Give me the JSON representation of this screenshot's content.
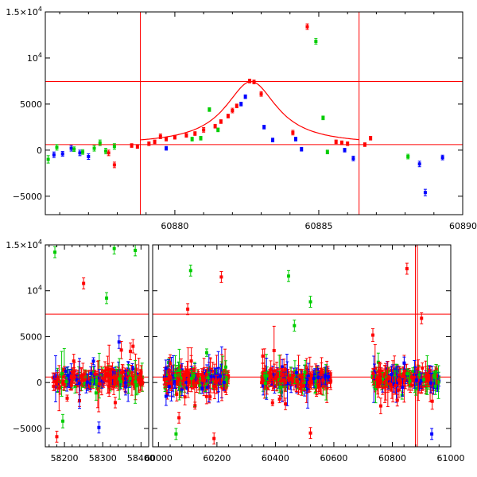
{
  "chart_data": [
    {
      "type": "scatter",
      "title": "",
      "xlabel": "",
      "ylabel": "",
      "xlim": [
        60875.5,
        60890
      ],
      "ylim": [
        -7000,
        15000
      ],
      "xticks": [
        60880,
        60885,
        60890
      ],
      "xtick_labels": [
        "60880",
        "60885",
        "60890"
      ],
      "yticks": [
        -5000,
        0,
        5000,
        10000,
        15000
      ],
      "ytick_labels": [
        {
          "base": "−5000",
          "exp": ""
        },
        {
          "base": "0",
          "exp": ""
        },
        {
          "base": "5000",
          "exp": ""
        },
        {
          "base": "10",
          "exp": "4"
        },
        {
          "base": "1.5×10",
          "exp": "4"
        }
      ],
      "reference_lines": {
        "horizontal": [
          7450,
          600
        ],
        "vertical": [
          60878.8,
          60886.4
        ]
      },
      "model_curve": {
        "color": "#ff0000",
        "peak_x": 60882.65,
        "peak_y": 7450,
        "baseline": 600,
        "width": 1.1,
        "x_range": [
          60878.8,
          60886.4
        ]
      },
      "series": [
        {
          "name": "blue",
          "color": "#0000ff",
          "points": [
            [
              60875.8,
              -500,
              300
            ],
            [
              60876.1,
              -400,
              250
            ],
            [
              60876.4,
              200,
              300
            ],
            [
              60876.7,
              -300,
              300
            ],
            [
              60877.0,
              -700,
              300
            ],
            [
              60879.7,
              200,
              200
            ],
            [
              60882.3,
              5000,
              200
            ],
            [
              60882.45,
              5800,
              200
            ],
            [
              60883.1,
              2500,
              200
            ],
            [
              60883.4,
              1100,
              200
            ],
            [
              60884.2,
              1200,
              200
            ],
            [
              60884.4,
              100,
              200
            ],
            [
              60885.9,
              0,
              200
            ],
            [
              60886.2,
              -900,
              250
            ],
            [
              60888.5,
              -1500,
              300
            ],
            [
              60888.7,
              -4600,
              350
            ],
            [
              60889.3,
              -800,
              250
            ]
          ]
        },
        {
          "name": "green",
          "color": "#00cc00",
          "points": [
            [
              60875.6,
              -1000,
              400
            ],
            [
              60875.9,
              300,
              300
            ],
            [
              60876.5,
              100,
              250
            ],
            [
              60876.8,
              -200,
              250
            ],
            [
              60877.2,
              200,
              300
            ],
            [
              60877.4,
              800,
              300
            ],
            [
              60877.6,
              -100,
              300
            ],
            [
              60877.9,
              400,
              300
            ],
            [
              60880.6,
              1200,
              200
            ],
            [
              60880.9,
              1300,
              200
            ],
            [
              60881.2,
              4400,
              200
            ],
            [
              60881.5,
              2200,
              200
            ],
            [
              60884.9,
              11800,
              300
            ],
            [
              60885.15,
              3500,
              200
            ],
            [
              60885.3,
              -200,
              200
            ],
            [
              60888.1,
              -700,
              250
            ]
          ]
        },
        {
          "name": "red",
          "color": "#ff0000",
          "points": [
            [
              60877.7,
              -300,
              300
            ],
            [
              60877.9,
              -1600,
              300
            ],
            [
              60878.5,
              500,
              200
            ],
            [
              60878.7,
              400,
              200
            ],
            [
              60879.1,
              700,
              200
            ],
            [
              60879.3,
              900,
              200
            ],
            [
              60879.5,
              1500,
              250
            ],
            [
              60879.7,
              1200,
              200
            ],
            [
              60880.0,
              1400,
              200
            ],
            [
              60880.4,
              1600,
              200
            ],
            [
              60880.7,
              1800,
              200
            ],
            [
              60881.0,
              2200,
              250
            ],
            [
              60881.4,
              2600,
              200
            ],
            [
              60881.6,
              3100,
              200
            ],
            [
              60881.85,
              3700,
              200
            ],
            [
              60882.0,
              4300,
              250
            ],
            [
              60882.15,
              4800,
              200
            ],
            [
              60882.6,
              7500,
              200
            ],
            [
              60882.75,
              7400,
              200
            ],
            [
              60883.0,
              6100,
              250
            ],
            [
              60884.1,
              1900,
              250
            ],
            [
              60884.6,
              13400,
              300
            ],
            [
              60885.6,
              900,
              200
            ],
            [
              60885.8,
              800,
              200
            ],
            [
              60886.0,
              700,
              200
            ],
            [
              60886.6,
              600,
              200
            ],
            [
              60886.8,
              1300,
              200
            ]
          ]
        }
      ]
    },
    {
      "type": "scatter",
      "title": "",
      "xlabel": "",
      "ylabel": "",
      "ylim": [
        -7000,
        15000
      ],
      "yticks": [
        -5000,
        0,
        5000,
        10000,
        15000
      ],
      "ytick_labels": [
        {
          "base": "−5000",
          "exp": ""
        },
        {
          "base": "0",
          "exp": ""
        },
        {
          "base": "5000",
          "exp": ""
        },
        {
          "base": "10",
          "exp": "4"
        },
        {
          "base": "1.5×10",
          "exp": "4"
        }
      ],
      "segments": [
        {
          "xlim": [
            58150,
            58420
          ],
          "xticks": [
            58200,
            58300,
            58400
          ],
          "xtick_labels": [
            "58200",
            "58300",
            "58400"
          ],
          "clusters": [
            [
              58170,
              58405
            ]
          ]
        },
        {
          "xlim": [
            59980,
            61000
          ],
          "xticks": [
            60000,
            60200,
            60400,
            60600,
            60800,
            61000
          ],
          "xtick_labels": [
            "60000",
            "60200",
            "60400",
            "60600",
            "60800",
            "61000"
          ],
          "clusters": [
            [
              60020,
              60240
            ],
            [
              60350,
              60590
            ],
            [
              60730,
              60960
            ]
          ]
        }
      ],
      "reference_lines": {
        "horizontal": [
          7450,
          600
        ],
        "vertical": [
          60879,
          60886
        ]
      },
      "outliers": [
        {
          "x": 58175,
          "y": 14200,
          "color": "#00cc00"
        },
        {
          "x": 58250,
          "y": 10800,
          "color": "#ff0000"
        },
        {
          "x": 58310,
          "y": 9200,
          "color": "#00cc00"
        },
        {
          "x": 58330,
          "y": 14600,
          "color": "#00cc00"
        },
        {
          "x": 58385,
          "y": 14400,
          "color": "#00cc00"
        },
        {
          "x": 58180,
          "y": -5900,
          "color": "#ff0000"
        },
        {
          "x": 58290,
          "y": -4900,
          "color": "#0000ff"
        },
        {
          "x": 60110,
          "y": 12200,
          "color": "#00cc00"
        },
        {
          "x": 60100,
          "y": 8000,
          "color": "#ff0000"
        },
        {
          "x": 60215,
          "y": 11500,
          "color": "#ff0000"
        },
        {
          "x": 60060,
          "y": -5600,
          "color": "#00cc00"
        },
        {
          "x": 60190,
          "y": -6100,
          "color": "#ff0000"
        },
        {
          "x": 60445,
          "y": 11600,
          "color": "#00cc00"
        },
        {
          "x": 60520,
          "y": 8800,
          "color": "#00cc00"
        },
        {
          "x": 60465,
          "y": 6200,
          "color": "#00cc00"
        },
        {
          "x": 60520,
          "y": -5500,
          "color": "#ff0000"
        },
        {
          "x": 60850,
          "y": 12400,
          "color": "#ff0000"
        },
        {
          "x": 60900,
          "y": 7000,
          "color": "#ff0000"
        },
        {
          "x": 60935,
          "y": -5600,
          "color": "#0000ff"
        }
      ]
    }
  ]
}
